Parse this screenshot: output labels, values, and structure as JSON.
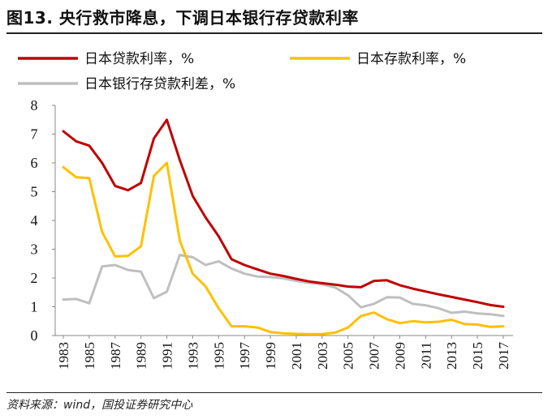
{
  "figure": {
    "title": "图13. 央行救市降息，下调日本银行存贷款利率",
    "source": "资料来源：wind，国投证券研究中心"
  },
  "chart_data": {
    "type": "line",
    "title": "图13. 央行救市降息，下调日本银行存贷款利率",
    "xlabel": "",
    "ylabel": "",
    "ylim": [
      0,
      8
    ],
    "y_ticks": [
      "0",
      "1",
      "2",
      "3",
      "4",
      "5",
      "6",
      "7",
      "8"
    ],
    "x_ticks": [
      "1983",
      "1985",
      "1987",
      "1989",
      "1991",
      "1993",
      "1995",
      "1997",
      "1999",
      "2001",
      "2003",
      "2005",
      "2007",
      "2009",
      "2011",
      "2013",
      "2015",
      "2017"
    ],
    "x": [
      1983,
      1984,
      1985,
      1986,
      1987,
      1988,
      1989,
      1990,
      1991,
      1992,
      1993,
      1994,
      1995,
      1996,
      1997,
      1998,
      1999,
      2000,
      2001,
      2002,
      2003,
      2004,
      2005,
      2006,
      2007,
      2008,
      2009,
      2010,
      2011,
      2012,
      2013,
      2014,
      2015,
      2016,
      2017
    ],
    "legend_position": "top",
    "series": [
      {
        "name": "日本贷款利率，%",
        "color": "#C00000",
        "values": [
          7.1,
          6.75,
          6.6,
          6.0,
          5.2,
          5.05,
          5.3,
          6.85,
          7.5,
          6.1,
          4.85,
          4.1,
          3.45,
          2.65,
          2.45,
          2.3,
          2.15,
          2.07,
          1.97,
          1.88,
          1.82,
          1.77,
          1.7,
          1.68,
          1.9,
          1.92,
          1.75,
          1.63,
          1.53,
          1.43,
          1.34,
          1.25,
          1.16,
          1.06,
          1.0
        ]
      },
      {
        "name": "日本存款利率，%",
        "color": "#FFC000",
        "values": [
          5.85,
          5.5,
          5.47,
          3.6,
          2.75,
          2.77,
          3.1,
          5.55,
          6.0,
          3.3,
          2.15,
          1.7,
          0.95,
          0.32,
          0.32,
          0.28,
          0.12,
          0.08,
          0.06,
          0.05,
          0.05,
          0.1,
          0.28,
          0.68,
          0.8,
          0.57,
          0.43,
          0.5,
          0.46,
          0.48,
          0.55,
          0.4,
          0.38,
          0.3,
          0.32
        ]
      },
      {
        "name": "日本银行存贷款利差，%",
        "color": "#BFBFBF",
        "values": [
          1.25,
          1.27,
          1.12,
          2.4,
          2.45,
          2.28,
          2.22,
          1.3,
          1.52,
          2.8,
          2.72,
          2.45,
          2.58,
          2.33,
          2.15,
          2.05,
          2.03,
          1.99,
          1.9,
          1.83,
          1.78,
          1.67,
          1.4,
          0.98,
          1.1,
          1.33,
          1.32,
          1.1,
          1.05,
          0.95,
          0.79,
          0.83,
          0.77,
          0.74,
          0.68
        ]
      }
    ]
  }
}
